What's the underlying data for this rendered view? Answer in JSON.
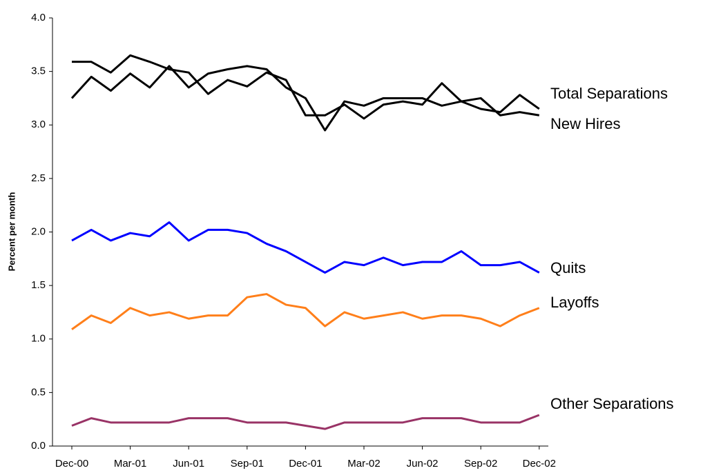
{
  "chart_data": {
    "type": "line",
    "ylabel": "Percent per month",
    "categories": [
      "Dec-00",
      null,
      null,
      "Mar-01",
      null,
      null,
      "Jun-01",
      null,
      null,
      "Sep-01",
      null,
      null,
      "Dec-01",
      null,
      null,
      "Mar-02",
      null,
      null,
      "Jun-02",
      null,
      null,
      "Sep-02",
      null,
      null,
      "Dec-02"
    ],
    "series": [
      {
        "name": "Total Separations",
        "color": "#000000",
        "values": [
          3.25,
          3.45,
          3.32,
          3.48,
          3.35,
          3.55,
          3.35,
          3.48,
          3.52,
          3.55,
          3.52,
          3.35,
          3.25,
          2.95,
          3.22,
          3.18,
          3.25,
          3.25,
          3.25,
          3.18,
          3.22,
          3.15,
          3.12,
          3.28,
          3.15
        ]
      },
      {
        "name": "New Hires",
        "color": "#000000",
        "values": [
          3.59,
          3.59,
          3.49,
          3.65,
          3.59,
          3.52,
          3.49,
          3.29,
          3.42,
          3.36,
          3.49,
          3.42,
          3.09,
          3.09,
          3.19,
          3.06,
          3.19,
          3.22,
          3.19,
          3.39,
          3.22,
          3.25,
          3.09,
          3.12,
          3.09
        ]
      },
      {
        "name": "Quits",
        "color": "#0000ff",
        "values": [
          1.92,
          2.02,
          1.92,
          1.99,
          1.96,
          2.09,
          1.92,
          2.02,
          2.02,
          1.99,
          1.89,
          1.82,
          1.72,
          1.62,
          1.72,
          1.69,
          1.76,
          1.69,
          1.72,
          1.72,
          1.82,
          1.69,
          1.69,
          1.72,
          1.62
        ]
      },
      {
        "name": "Layoffs",
        "color": "#ff7f1a",
        "values": [
          1.09,
          1.22,
          1.15,
          1.29,
          1.22,
          1.25,
          1.19,
          1.22,
          1.22,
          1.39,
          1.42,
          1.32,
          1.29,
          1.12,
          1.25,
          1.19,
          1.22,
          1.25,
          1.19,
          1.22,
          1.22,
          1.19,
          1.12,
          1.22,
          1.29
        ]
      },
      {
        "name": "Other Separations",
        "color": "#993366",
        "values": [
          0.19,
          0.26,
          0.22,
          0.22,
          0.22,
          0.22,
          0.26,
          0.26,
          0.26,
          0.22,
          0.22,
          0.22,
          0.19,
          0.16,
          0.22,
          0.22,
          0.22,
          0.22,
          0.26,
          0.26,
          0.26,
          0.22,
          0.22,
          0.22,
          0.29
        ]
      }
    ],
    "ylim": [
      0,
      4
    ],
    "yticks": [
      {
        "value": 0,
        "label": "0.0"
      },
      0.5,
      {
        "value": 1,
        "label": "1.0"
      },
      1.5,
      {
        "value": 2,
        "label": "2.0"
      },
      2.5,
      {
        "value": 3,
        "label": "3.0"
      },
      3.5,
      {
        "value": 4,
        "label": "4.0"
      }
    ],
    "grid": false
  }
}
